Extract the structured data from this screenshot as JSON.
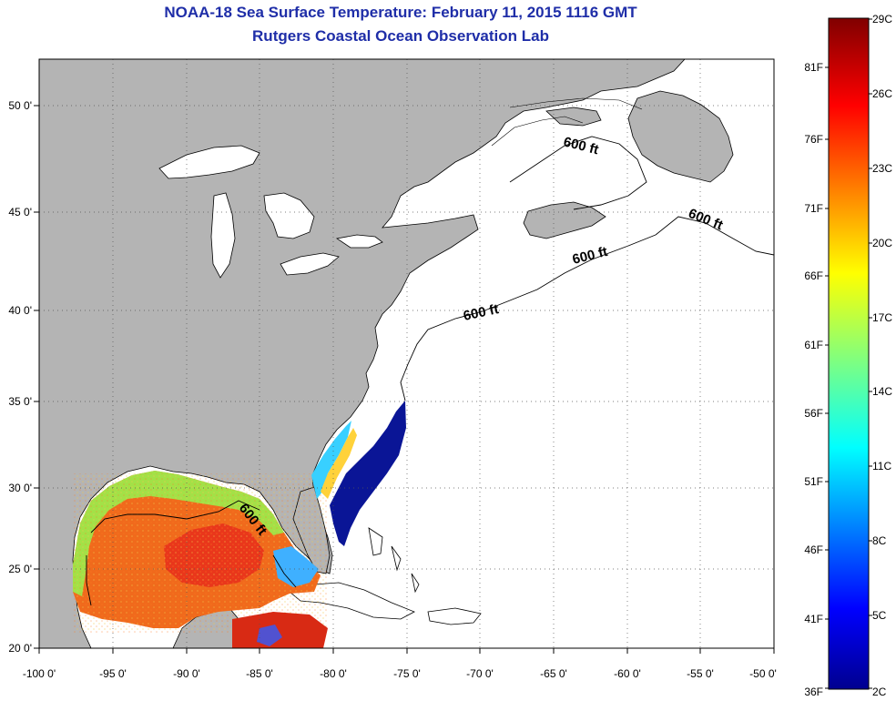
{
  "title": {
    "line1": "NOAA-18 Sea Surface Temperature:  February 11, 2015 1116 GMT",
    "line2": "Rutgers Coastal Ocean Observation Lab"
  },
  "map": {
    "lon_labels": [
      "-100 0'",
      "-95 0'",
      "-90 0'",
      "-85 0'",
      "-80 0'",
      "-75 0'",
      "-70 0'",
      "-65 0'",
      "-60 0'",
      "-55 0'",
      "-50 0'"
    ],
    "lat_labels": [
      "50 0'",
      "45 0'",
      "40 0'",
      "35 0'",
      "30 0'",
      "25 0'",
      "20 0'"
    ],
    "contour_labels": [
      "600 ft",
      "600 ft",
      "600 ft",
      "600 ft",
      "600 ft"
    ],
    "land_color": "#b4b4b4",
    "ocean_color": "#ffffff"
  },
  "colorbar": {
    "celsius": [
      "29C",
      "26C",
      "23C",
      "20C",
      "17C",
      "14C",
      "11C",
      "8C",
      "5C",
      "2C"
    ],
    "fahrenheit": [
      "81F",
      "76F",
      "71F",
      "66F",
      "61F",
      "56F",
      "51F",
      "46F",
      "41F",
      "36F"
    ]
  }
}
